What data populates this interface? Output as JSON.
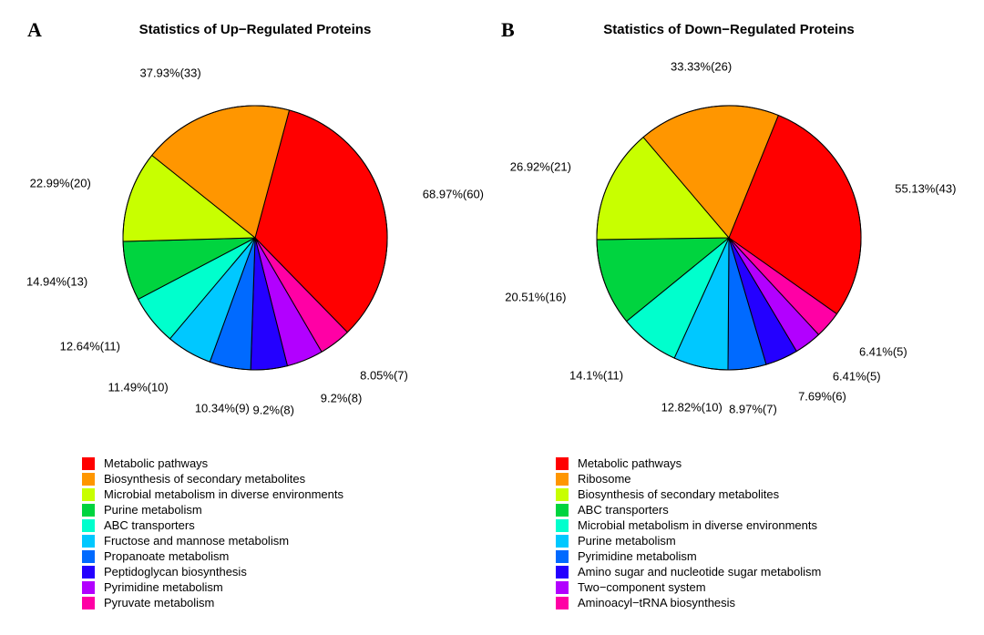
{
  "panels": [
    {
      "letter": "A",
      "title": "Statistics of Up−Regulated Proteins",
      "type": "pie",
      "pie_radius": 145,
      "border_color": "#000000",
      "border_width": 1,
      "start_angle_deg": 75,
      "label_fontsize": 13,
      "legend_fontsize": 13,
      "slices": [
        {
          "label": "68.97%(60)",
          "value": 60,
          "color": "#ff0000",
          "legend": "Metabolic pathways"
        },
        {
          "label": "8.05%(7)",
          "value": 7,
          "color": "#ff00a5",
          "legend": "Pyruvate metabolism"
        },
        {
          "label": "9.2%(8)",
          "value": 8,
          "color": "#b200ff",
          "legend": "Pyrimidine metabolism"
        },
        {
          "label": "9.2%(8)",
          "value": 8,
          "color": "#2400ff",
          "legend": "Peptidoglycan biosynthesis"
        },
        {
          "label": "10.34%(9)",
          "value": 9,
          "color": "#006aff",
          "legend": "Propanoate metabolism"
        },
        {
          "label": "11.49%(10)",
          "value": 10,
          "color": "#00c8ff",
          "legend": "Fructose and mannose metabolism"
        },
        {
          "label": "12.64%(11)",
          "value": 11,
          "color": "#00ffcd",
          "legend": "ABC transporters"
        },
        {
          "label": "14.94%(13)",
          "value": 13,
          "color": "#00d43f",
          "legend": "Purine metabolism"
        },
        {
          "label": "22.99%(20)",
          "value": 20,
          "color": "#c8ff00",
          "legend": "Microbial metabolism in diverse environments"
        },
        {
          "label": "37.93%(33)",
          "value": 33,
          "color": "#ff9600",
          "legend": "Biosynthesis of secondary metabolites"
        }
      ],
      "legend_order": [
        0,
        9,
        8,
        7,
        6,
        5,
        4,
        3,
        2,
        1
      ]
    },
    {
      "letter": "B",
      "title": "Statistics of Down−Regulated Proteins",
      "type": "pie",
      "pie_radius": 145,
      "border_color": "#000000",
      "border_width": 1,
      "start_angle_deg": 68,
      "label_fontsize": 13,
      "legend_fontsize": 13,
      "slices": [
        {
          "label": "55.13%(43)",
          "value": 43,
          "color": "#ff0000",
          "legend": "Metabolic pathways"
        },
        {
          "label": "6.41%(5)",
          "value": 5,
          "color": "#ff00a5",
          "legend": "Aminoacyl−tRNA biosynthesis"
        },
        {
          "label": "6.41%(5)",
          "value": 5,
          "color": "#b200ff",
          "legend": "Two−component system"
        },
        {
          "label": "7.69%(6)",
          "value": 6,
          "color": "#2400ff",
          "legend": "Amino sugar and nucleotide sugar metabolism"
        },
        {
          "label": "8.97%(7)",
          "value": 7,
          "color": "#006aff",
          "legend": "Pyrimidine metabolism"
        },
        {
          "label": "12.82%(10)",
          "value": 10,
          "color": "#00c8ff",
          "legend": "Purine metabolism"
        },
        {
          "label": "14.1%(11)",
          "value": 11,
          "color": "#00ffcd",
          "legend": "Microbial metabolism in diverse environments"
        },
        {
          "label": "20.51%(16)",
          "value": 16,
          "color": "#00d43f",
          "legend": "ABC transporters"
        },
        {
          "label": "26.92%(21)",
          "value": 21,
          "color": "#c8ff00",
          "legend": "Biosynthesis of secondary metabolites"
        },
        {
          "label": "33.33%(26)",
          "value": 26,
          "color": "#ff9600",
          "legend": "Ribosome"
        }
      ],
      "legend_order": [
        0,
        9,
        8,
        7,
        6,
        5,
        4,
        3,
        2,
        1
      ]
    }
  ]
}
